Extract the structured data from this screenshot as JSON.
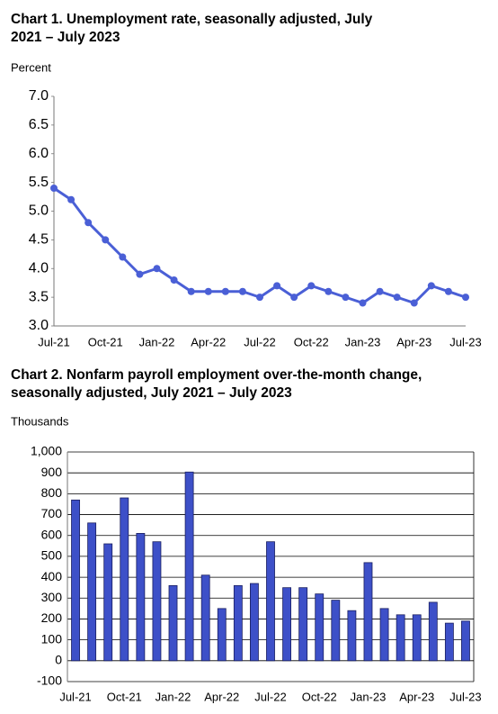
{
  "chart_data": [
    {
      "type": "line",
      "title": "Chart 1. Unemployment rate, seasonally adjusted, July 2021 – July 2023",
      "y_label": "Percent",
      "categories": [
        "Jul-21",
        null,
        null,
        "Oct-21",
        null,
        null,
        "Jan-22",
        null,
        null,
        "Apr-22",
        null,
        null,
        "Jul-22",
        null,
        null,
        "Oct-22",
        null,
        null,
        "Jan-23",
        null,
        null,
        "Apr-23",
        null,
        null,
        "Jul-23"
      ],
      "values": [
        5.4,
        5.2,
        4.8,
        4.5,
        4.2,
        3.9,
        4.0,
        3.8,
        3.6,
        3.6,
        3.6,
        3.6,
        3.5,
        3.7,
        3.5,
        3.7,
        3.6,
        3.5,
        3.4,
        3.6,
        3.5,
        3.4,
        3.7,
        3.6,
        3.5
      ],
      "color": "#4a5fd6",
      "ylim": [
        3.0,
        7.0
      ],
      "yticks": [
        {
          "value": 3,
          "label": "3.0"
        },
        3.5,
        {
          "value": 4,
          "label": "4.0"
        },
        4.5,
        {
          "value": 5,
          "label": "5.0"
        },
        5.5,
        {
          "value": 6,
          "label": "6.0"
        },
        6.5,
        {
          "value": 7,
          "label": "7.0"
        }
      ],
      "grid": false
    },
    {
      "type": "bar",
      "title": "Chart 2. Nonfarm payroll employment over-the-month change, seasonally adjusted, July 2021 – July 2023",
      "y_label": "Thousands",
      "categories": [
        "Jul-21",
        null,
        null,
        "Oct-21",
        null,
        null,
        "Jan-22",
        null,
        null,
        "Apr-22",
        null,
        null,
        "Jul-22",
        null,
        null,
        "Oct-22",
        null,
        null,
        "Jan-23",
        null,
        null,
        "Apr-23",
        null,
        null,
        "Jul-23"
      ],
      "values": [
        770,
        660,
        560,
        780,
        610,
        570,
        360,
        904,
        410,
        250,
        360,
        370,
        570,
        350,
        350,
        320,
        290,
        240,
        470,
        250,
        220,
        220,
        280,
        180,
        190
      ],
      "color": "#3d50c8",
      "ylim": [
        -100,
        1000
      ],
      "yticks": [
        -100,
        0,
        100,
        200,
        300,
        400,
        500,
        600,
        700,
        800,
        900,
        {
          "value": 1000,
          "label": "1,000"
        }
      ],
      "grid": true
    }
  ]
}
